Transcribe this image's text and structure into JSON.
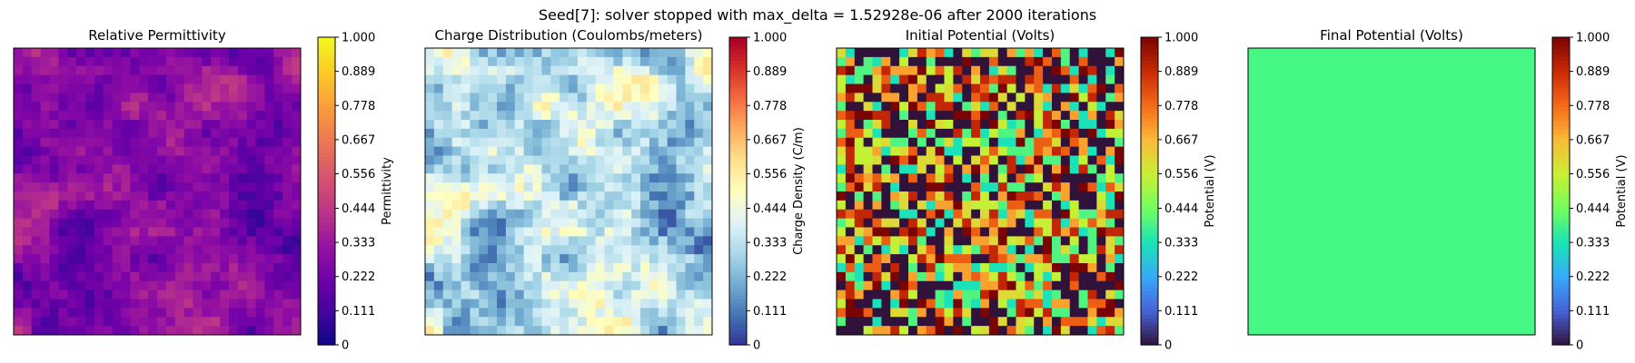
{
  "suptitle": "Seed[7]: solver stopped with max_delta = 1.52928e-06 after 2000 iterations",
  "chart_data": [
    {
      "type": "heatmap",
      "title": "Relative Permittivity",
      "grid_size": [
        32,
        32
      ],
      "colormap": "plasma",
      "colorbar_label": "Permittivity",
      "colorbar_range": [
        0,
        1
      ],
      "colorbar_ticks": [
        "0",
        "0.111",
        "0.222",
        "0.333",
        "0.444",
        "0.556",
        "0.667",
        "0.778",
        "0.889",
        "1.000"
      ],
      "value_range": [
        0.08,
        0.45
      ],
      "pattern": "smooth",
      "seed": 7
    },
    {
      "type": "heatmap",
      "title": "Charge Distribution (Coulombs/meters)",
      "grid_size": [
        32,
        32
      ],
      "colormap": "RdYlBu_r",
      "colorbar_label": "Charge Density (C/m)",
      "colorbar_range": [
        0,
        1
      ],
      "colorbar_ticks": [
        "0",
        "0.111",
        "0.222",
        "0.333",
        "0.444",
        "0.556",
        "0.667",
        "0.778",
        "0.889",
        "1.000"
      ],
      "value_range": [
        0.05,
        0.58
      ],
      "pattern": "smooth",
      "seed": 7
    },
    {
      "type": "heatmap",
      "title": "Initial Potential (Volts)",
      "grid_size": [
        32,
        32
      ],
      "colormap": "turbo",
      "colorbar_label": "Potential (V)",
      "colorbar_range": [
        0,
        1
      ],
      "colorbar_ticks": [
        "0",
        "0.111",
        "0.222",
        "0.333",
        "0.444",
        "0.556",
        "0.667",
        "0.778",
        "0.889",
        "1.000"
      ],
      "value_range": [
        0,
        1
      ],
      "pattern": "random",
      "seed": 13
    },
    {
      "type": "heatmap",
      "title": "Final Potential (Volts)",
      "grid_size": [
        1,
        1
      ],
      "colormap": "turbo",
      "colorbar_label": "Potential (V)",
      "colorbar_range": [
        0,
        1
      ],
      "colorbar_ticks": [
        "0",
        "0.111",
        "0.222",
        "0.333",
        "0.444",
        "0.556",
        "0.667",
        "0.778",
        "0.889",
        "1.000"
      ],
      "value_range": [
        0.5,
        0.5
      ],
      "pattern": "uniform",
      "color": "#46f884"
    }
  ]
}
